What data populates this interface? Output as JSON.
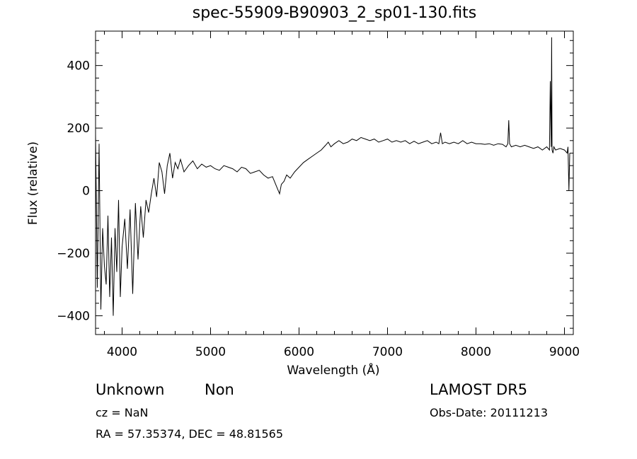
{
  "chart_data": {
    "type": "line",
    "title": "spec-55909-B90903_2_sp01-130.fits",
    "xlabel": "Wavelength (Å)",
    "ylabel": "Flux (relative)",
    "xlim": [
      3700,
      9100
    ],
    "ylim": [
      -460,
      510
    ],
    "xticks": [
      4000,
      5000,
      6000,
      7000,
      8000,
      9000
    ],
    "xtick_labels": [
      "4000",
      "5000",
      "6000",
      "7000",
      "8000",
      "9000"
    ],
    "yticks": [
      -400,
      -200,
      0,
      200,
      400
    ],
    "ytick_labels": [
      "−400",
      "−200",
      "0",
      "200",
      "400"
    ],
    "grid": false,
    "series": [
      {
        "x": [
          3700,
          3720,
          3740,
          3760,
          3780,
          3800,
          3820,
          3840,
          3860,
          3880,
          3900,
          3920,
          3940,
          3960,
          3980,
          4000,
          4030,
          4060,
          4090,
          4120,
          4150,
          4180,
          4210,
          4240,
          4270,
          4300,
          4330,
          4360,
          4390,
          4420,
          4450,
          4480,
          4510,
          4540,
          4570,
          4600,
          4630,
          4660,
          4700,
          4750,
          4800,
          4850,
          4900,
          4950,
          5000,
          5050,
          5100,
          5150,
          5200,
          5250,
          5300,
          5350,
          5400,
          5450,
          5500,
          5550,
          5600,
          5650,
          5700,
          5750,
          5780,
          5800,
          5830,
          5860,
          5900,
          5950,
          6000,
          6050,
          6100,
          6150,
          6200,
          6250,
          6300,
          6330,
          6360,
          6400,
          6450,
          6500,
          6550,
          6600,
          6650,
          6700,
          6750,
          6800,
          6850,
          6900,
          6950,
          7000,
          7050,
          7100,
          7150,
          7200,
          7250,
          7300,
          7350,
          7400,
          7450,
          7500,
          7550,
          7580,
          7600,
          7620,
          7650,
          7700,
          7750,
          7800,
          7850,
          7900,
          7950,
          8000,
          8050,
          8100,
          8150,
          8200,
          8250,
          8300,
          8340,
          8360,
          8370,
          8380,
          8400,
          8450,
          8500,
          8550,
          8600,
          8650,
          8700,
          8750,
          8800,
          8830,
          8840,
          8850,
          8855,
          8860,
          8870,
          8880,
          8900,
          8950,
          9000,
          9030,
          9040,
          9050,
          9060
        ],
        "y": [
          180,
          -310,
          150,
          -380,
          -120,
          -240,
          -300,
          -80,
          -340,
          -150,
          -400,
          -120,
          -260,
          -30,
          -340,
          -180,
          -90,
          -250,
          -60,
          -330,
          -40,
          -220,
          -50,
          -150,
          -30,
          -70,
          -10,
          40,
          -20,
          90,
          60,
          -10,
          80,
          120,
          40,
          90,
          70,
          100,
          60,
          80,
          95,
          70,
          85,
          75,
          80,
          70,
          65,
          80,
          75,
          70,
          60,
          75,
          70,
          55,
          60,
          65,
          50,
          40,
          45,
          10,
          -10,
          20,
          30,
          50,
          40,
          60,
          75,
          90,
          100,
          110,
          120,
          130,
          145,
          155,
          140,
          150,
          160,
          150,
          155,
          165,
          160,
          170,
          165,
          160,
          165,
          155,
          160,
          165,
          155,
          160,
          155,
          160,
          150,
          158,
          150,
          155,
          160,
          150,
          155,
          150,
          185,
          150,
          155,
          150,
          155,
          150,
          160,
          150,
          155,
          150,
          150,
          148,
          150,
          145,
          150,
          148,
          140,
          150,
          225,
          150,
          140,
          145,
          140,
          145,
          140,
          135,
          140,
          130,
          140,
          130,
          350,
          140,
          490,
          130,
          120,
          140,
          130,
          135,
          130,
          120,
          140,
          0,
          120
        ]
      }
    ]
  },
  "footer": {
    "object_class": "Unknown",
    "object_subclass": "Non",
    "cz": "cz = NaN",
    "coords": "RA =  57.35374, DEC =  48.81565",
    "survey": "LAMOST DR5",
    "obs_date": "Obs-Date: 20111213"
  }
}
